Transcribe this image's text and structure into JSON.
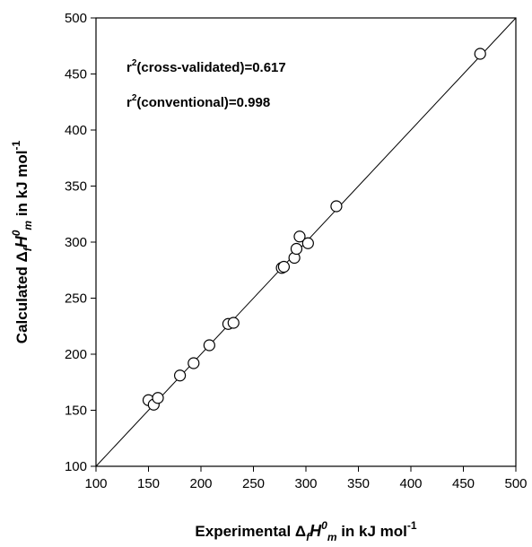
{
  "chart_data": {
    "type": "scatter",
    "title": "",
    "xlabel": "Experimental ΔfH0m in kJ mol-1",
    "ylabel": "Calculated ΔfH0m in kJ mol-1",
    "xlabel_parts": {
      "pre": "Experimental Δ",
      "sub1": "f",
      "main": "H",
      "sup": "0",
      "sub2": "m",
      "post": " in kJ mol",
      "exp": "-1"
    },
    "ylabel_parts": {
      "pre": "Calculated Δ",
      "sub1": "f",
      "main": "H",
      "sup": "0",
      "sub2": "m",
      "post": " in kJ mol",
      "exp": "-1"
    },
    "xlim": [
      100,
      500
    ],
    "ylim": [
      100,
      500
    ],
    "xticks": [
      100,
      150,
      200,
      250,
      300,
      350,
      400,
      450,
      500
    ],
    "yticks": [
      100,
      150,
      200,
      250,
      300,
      350,
      400,
      450,
      500
    ],
    "grid": false,
    "legend": false,
    "reference_line": {
      "type": "y=x",
      "from": 100,
      "to": 500
    },
    "annotations": [
      {
        "r": "r",
        "sup": "2",
        "rest": "(cross-validated)=0.617"
      },
      {
        "r": "r",
        "sup": "2",
        "rest": "(conventional)=0.998"
      }
    ],
    "points": [
      {
        "x": 150,
        "y": 159
      },
      {
        "x": 155,
        "y": 155
      },
      {
        "x": 159,
        "y": 161
      },
      {
        "x": 180,
        "y": 181
      },
      {
        "x": 193,
        "y": 192
      },
      {
        "x": 208,
        "y": 208
      },
      {
        "x": 226,
        "y": 227
      },
      {
        "x": 231,
        "y": 228
      },
      {
        "x": 277,
        "y": 277
      },
      {
        "x": 279,
        "y": 278
      },
      {
        "x": 289,
        "y": 286
      },
      {
        "x": 291,
        "y": 294
      },
      {
        "x": 294,
        "y": 305
      },
      {
        "x": 302,
        "y": 299
      },
      {
        "x": 329,
        "y": 332
      },
      {
        "x": 466,
        "y": 468
      }
    ]
  }
}
